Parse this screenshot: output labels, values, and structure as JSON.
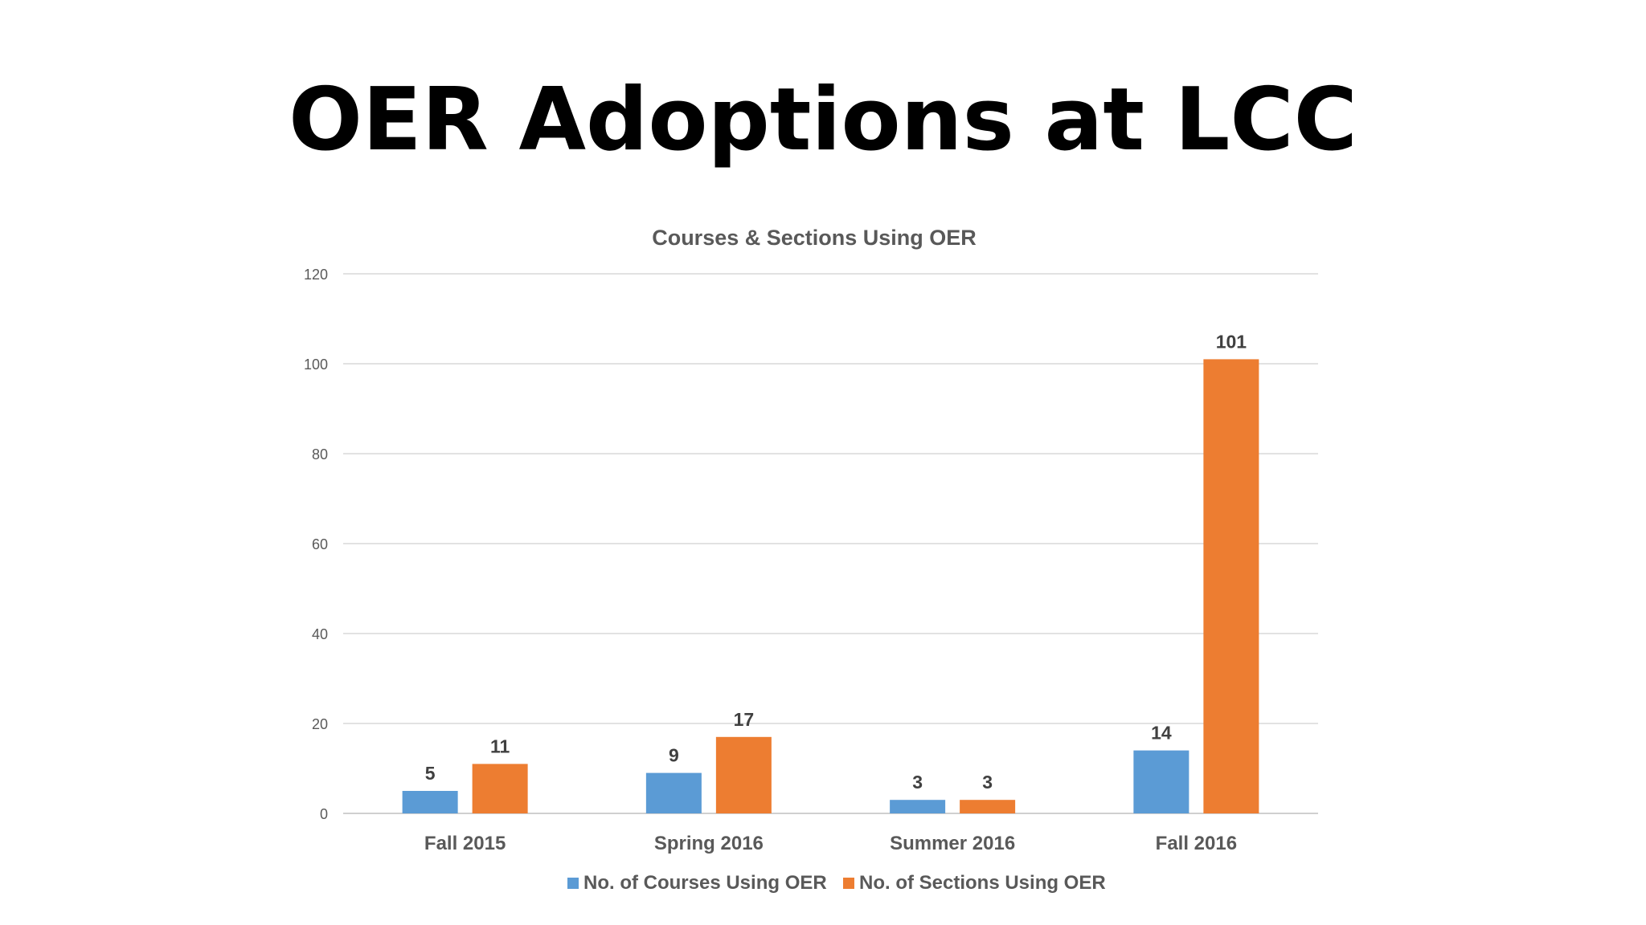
{
  "slide": {
    "title": "OER Adoptions at LCC"
  },
  "colors": {
    "courses": "#5B9BD5",
    "sections": "#ED7D31",
    "gridline": "#D9D9D9",
    "axis_text": "#595959",
    "label_text": "#404040"
  },
  "chart_data": {
    "type": "bar",
    "title": "Courses & Sections Using OER",
    "categories": [
      "Fall 2015",
      "Spring 2016",
      "Summer 2016",
      "Fall 2016"
    ],
    "series": [
      {
        "name": "No. of Courses Using OER",
        "values": [
          5,
          9,
          3,
          14
        ]
      },
      {
        "name": "No. of Sections Using OER",
        "values": [
          11,
          17,
          3,
          101
        ]
      }
    ],
    "ylim": [
      0,
      120
    ],
    "yticks": [
      0,
      20,
      40,
      60,
      80,
      100,
      120
    ],
    "grid": true,
    "legend": "bottom",
    "data_labels": true
  }
}
